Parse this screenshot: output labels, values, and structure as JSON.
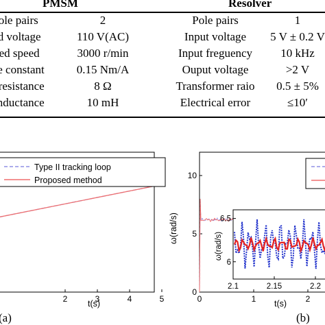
{
  "table": {
    "pmsm_header": "PMSM",
    "resolver_header": "Resolver",
    "rows": [
      {
        "p_label": "Pole pairs",
        "p_value": "2",
        "r_label": "Pole pairs",
        "r_value": "1"
      },
      {
        "p_label": "ted voltage",
        "p_value": "110 V(AC)",
        "r_label": "Input voltage",
        "r_value": "5 V ± 0.2 V"
      },
      {
        "p_label": "ated speed",
        "p_value": "3000 r/min",
        "r_label": "Input freguency",
        "r_value": "10 kHz"
      },
      {
        "p_label": "que constant",
        "p_value": "0.15 Nm/A",
        "r_label": "Ouput voltage",
        "r_value": ">2 V"
      },
      {
        "p_label": "se resistance",
        "p_value": "8 Ω",
        "r_label": "Transformer raio",
        "r_value": "0.5 ± 5%"
      },
      {
        "p_label": "e inductance",
        "p_value": "10 mH",
        "r_label": "Electrical error",
        "r_value": "≤10′"
      }
    ]
  },
  "chart_data": [
    {
      "type": "line",
      "panel_label": "(a)",
      "xlabel": "t(s)",
      "ylabel": "",
      "xlim": [
        0,
        5
      ],
      "x_ticks": [
        "2",
        "3",
        "4",
        "5"
      ],
      "legend": [
        "Type II tracking loop",
        "Proposed method"
      ],
      "series": [
        {
          "name": "Type II tracking loop",
          "style": "dashed",
          "color": "#8f8fe6",
          "x": [
            0,
            5
          ],
          "y": [
            0.15,
            0.38
          ]
        },
        {
          "name": "Proposed method",
          "style": "solid",
          "color": "#ef6f6f",
          "x": [
            0,
            5
          ],
          "y": [
            0.15,
            0.38
          ]
        }
      ]
    },
    {
      "type": "line",
      "panel_label": "(b)",
      "xlabel": "t(s)",
      "ylabel": "ω(rad/s)",
      "ylim": [
        0,
        12
      ],
      "y_ticks": [
        "0",
        "5",
        "10"
      ],
      "x_ticks": [
        "0",
        "1",
        "2"
      ],
      "series": [
        {
          "name": "",
          "style": "dashed",
          "color": "#8f8fe6",
          "level": 6.2
        },
        {
          "name": "",
          "style": "solid",
          "color": "#ef6f6f",
          "level": 6.2
        }
      ],
      "inset": {
        "ylabel": "ω(rad/s)",
        "xlim": [
          2.1,
          2.22
        ],
        "ylim": [
          5.8,
          6.6
        ],
        "x_ticks": [
          "2.1",
          "2.15",
          "2.2"
        ],
        "y_ticks": [
          "6",
          "6.5"
        ],
        "series": [
          {
            "name": "",
            "color": "#2233cc",
            "style": "dotted",
            "mean": 6.2,
            "amplitude": 0.3
          },
          {
            "name": "",
            "color": "#e32222",
            "style": "solid",
            "mean": 6.2,
            "amplitude": 0.08
          }
        ]
      }
    }
  ]
}
